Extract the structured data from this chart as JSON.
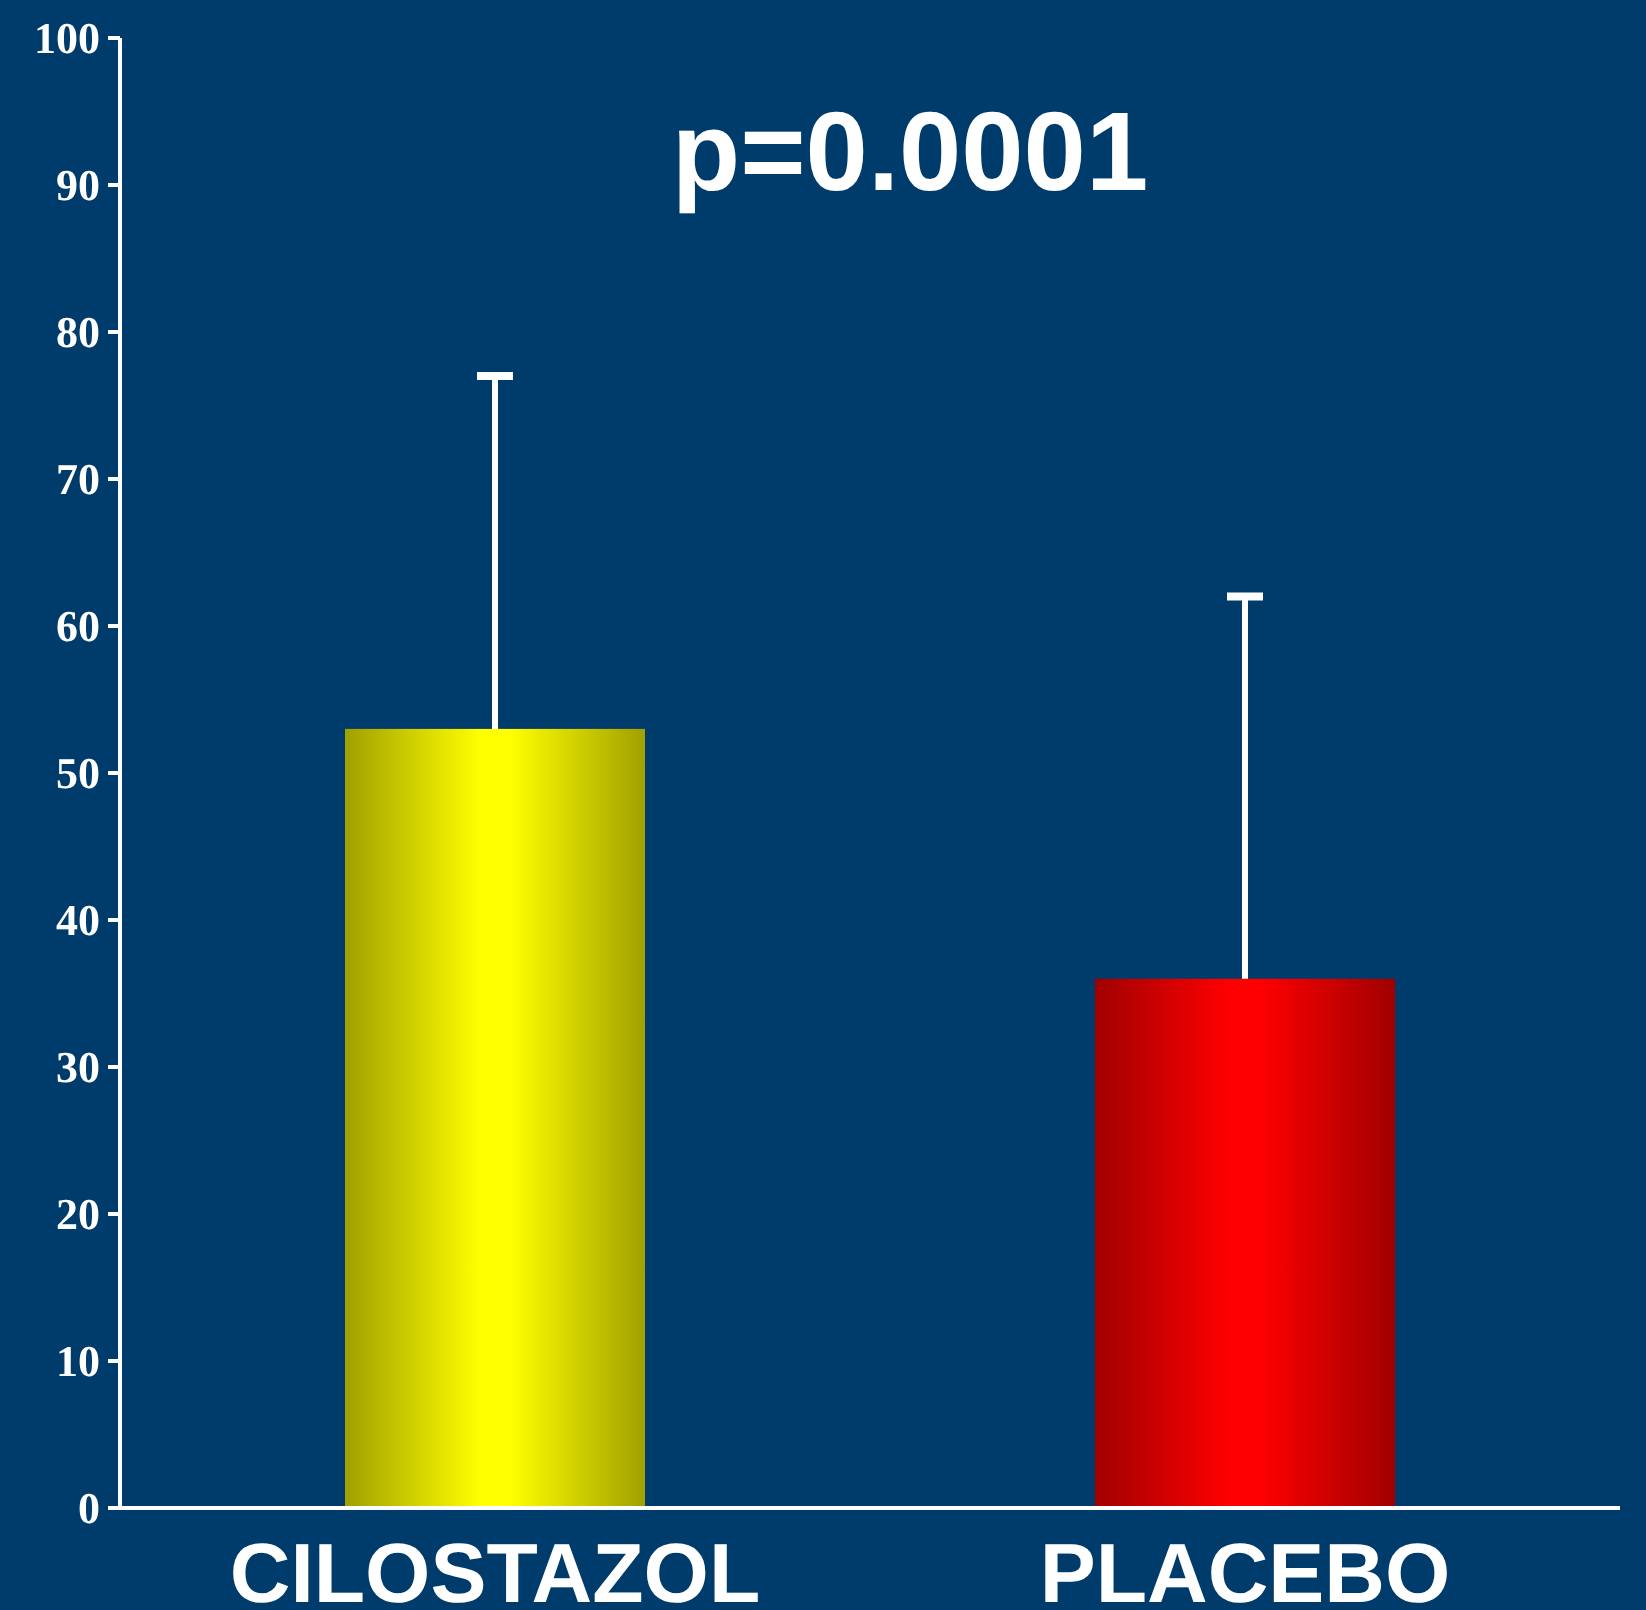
{
  "chart_data": {
    "type": "bar",
    "categories": [
      "CILOSTAZOL",
      "PLACEBO"
    ],
    "values": [
      53,
      36
    ],
    "colors": [
      "#ffff00",
      "#ff0000"
    ],
    "errors": [
      [
        53,
        77
      ],
      [
        36,
        62
      ]
    ],
    "ylim": [
      0,
      100
    ],
    "yticks": [
      0,
      10,
      20,
      30,
      40,
      50,
      60,
      70,
      80,
      90,
      100
    ],
    "grid": false,
    "annotations": [
      "p=0.0001"
    ]
  }
}
